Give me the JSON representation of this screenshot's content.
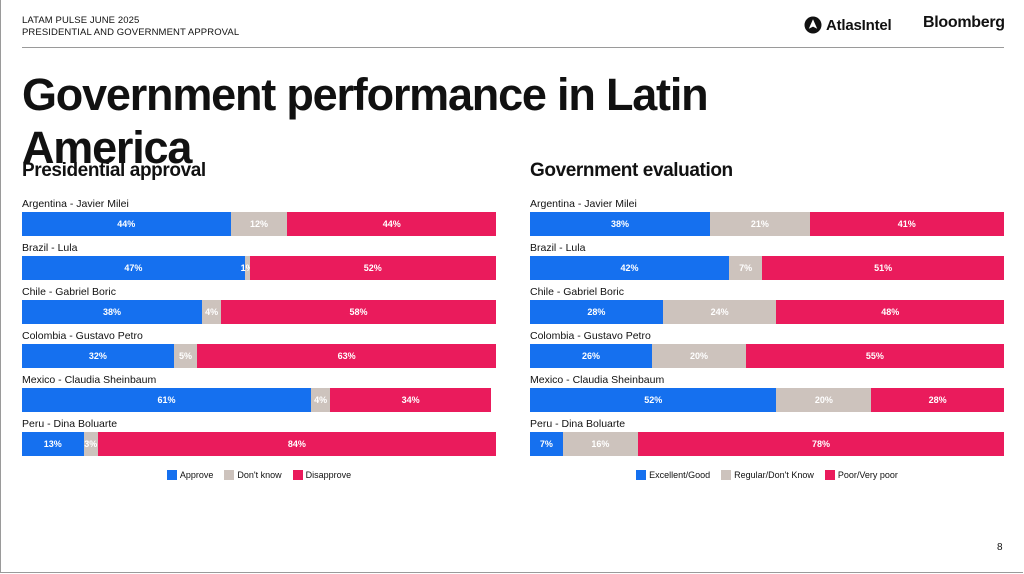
{
  "header": {
    "kicker_line1": "LATAM PULSE JUNE 2025",
    "kicker_line2": "PRESIDENTIAL AND GOVERNMENT APPROVAL",
    "logo_atlas": "AtlasIntel",
    "logo_bloomberg": "Bloomberg"
  },
  "title": "Government performance in Latin America",
  "page_number": "8",
  "colors": {
    "blue": "#1570ef",
    "gray": "#cdc3bd",
    "red": "#ea1b5c"
  },
  "chart_data": [
    {
      "type": "bar",
      "stacked": true,
      "orientation": "horizontal",
      "title": "Presidential approval",
      "categories": [
        "Argentina - Javier Milei",
        "Brazil - Lula",
        "Chile - Gabriel Boric",
        "Colombia - Gustavo Petro",
        "Mexico - Claudia Sheinbaum",
        "Peru - Dina Boluarte"
      ],
      "series": [
        {
          "name": "Approve",
          "color": "#1570ef",
          "values": [
            44,
            47,
            38,
            32,
            61,
            13
          ]
        },
        {
          "name": "Don't know",
          "color": "#cdc3bd",
          "values": [
            12,
            1,
            4,
            5,
            4,
            3
          ]
        },
        {
          "name": "Disapprove",
          "color": "#ea1b5c",
          "values": [
            44,
            52,
            58,
            63,
            34,
            84
          ]
        }
      ],
      "value_suffix": "%",
      "xlim": [
        0,
        100
      ],
      "legend": "bottom-center"
    },
    {
      "type": "bar",
      "stacked": true,
      "orientation": "horizontal",
      "title": "Government evaluation",
      "categories": [
        "Argentina - Javier Milei",
        "Brazil - Lula",
        "Chile - Gabriel Boric",
        "Colombia - Gustavo Petro",
        "Mexico - Claudia Sheinbaum",
        "Peru - Dina Boluarte"
      ],
      "series": [
        {
          "name": "Excellent/Good",
          "color": "#1570ef",
          "values": [
            38,
            42,
            28,
            26,
            52,
            7
          ]
        },
        {
          "name": "Regular/Don't Know",
          "color": "#cdc3bd",
          "values": [
            21,
            7,
            24,
            20,
            20,
            16
          ]
        },
        {
          "name": "Poor/Very poor",
          "color": "#ea1b5c",
          "values": [
            41,
            51,
            48,
            55,
            28,
            78
          ]
        }
      ],
      "value_suffix": "%",
      "xlim": [
        0,
        100
      ],
      "legend": "bottom-center"
    }
  ]
}
